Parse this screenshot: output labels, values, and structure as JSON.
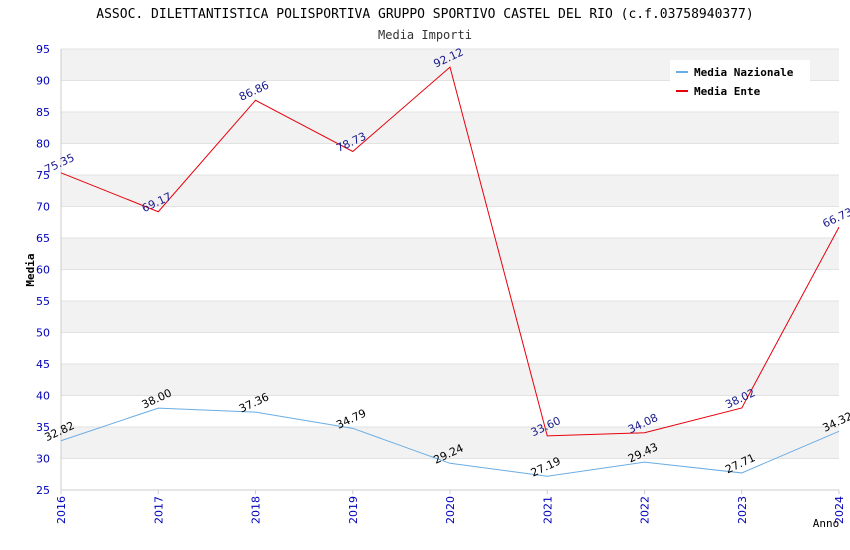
{
  "chart_data": {
    "type": "line",
    "title": "ASSOC. DILETTANTISTICA POLISPORTIVA GRUPPO SPORTIVO CASTEL DEL RIO (c.f.03758940377)",
    "subtitle": "Media Importi",
    "xlabel": "Anno",
    "ylabel": "Media",
    "categories": [
      "2016",
      "2017",
      "2018",
      "2019",
      "2020",
      "2021",
      "2022",
      "2023",
      "2024"
    ],
    "ylim": [
      25,
      95
    ],
    "yticks": [
      25,
      30,
      35,
      40,
      45,
      50,
      55,
      60,
      65,
      70,
      75,
      80,
      85,
      90,
      95
    ],
    "grid": true,
    "legend_position": "top-right",
    "series": [
      {
        "name": "Media Nazionale",
        "color": "#6aade4",
        "label_color": "#000000",
        "values": [
          32.82,
          38.0,
          37.36,
          34.79,
          29.24,
          27.19,
          29.43,
          27.71,
          34.32
        ],
        "labels": [
          "32.82",
          "38.00",
          "37.36",
          "34.79",
          "29.24",
          "27.19",
          "29.43",
          "27.71",
          "34.32"
        ]
      },
      {
        "name": "Media Ente",
        "color": "#e8000b",
        "label_color": "#1a1a8c",
        "values": [
          75.35,
          69.17,
          86.86,
          78.73,
          92.12,
          33.6,
          34.08,
          38.02,
          66.73
        ],
        "labels": [
          "75.35",
          "69.17",
          "86.86",
          "78.73",
          "92.12",
          "33.60",
          "34.08",
          "38.02",
          "66.73"
        ]
      }
    ]
  }
}
